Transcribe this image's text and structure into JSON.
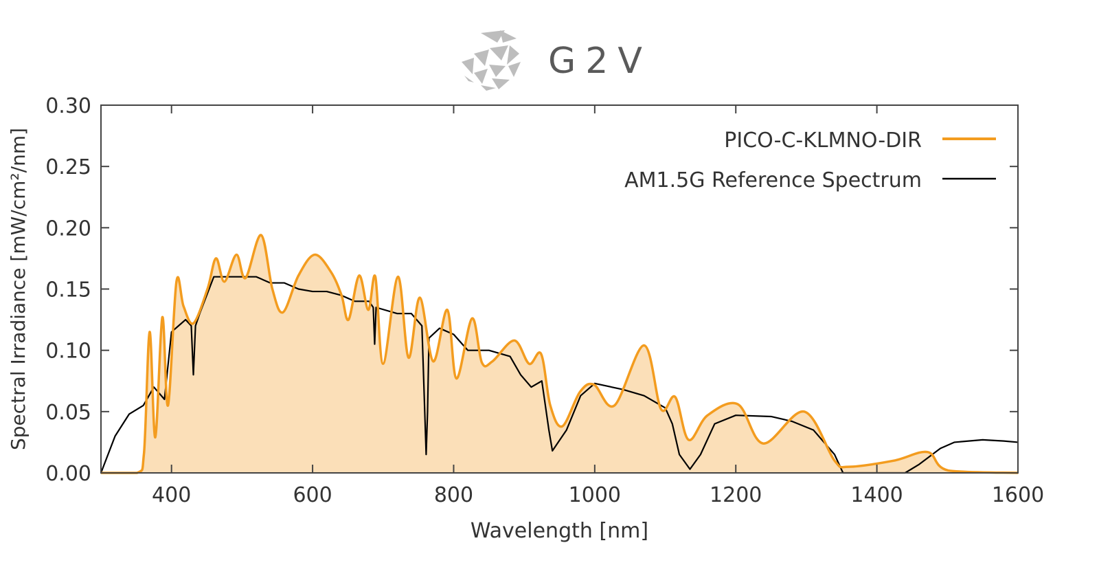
{
  "logo": {
    "text": "G2V"
  },
  "chart_data": {
    "type": "line",
    "title": "",
    "xlabel": "Wavelength [nm]",
    "ylabel": "Spectral Irradiance [mW/cm²/nm]",
    "xlim": [
      300,
      1600
    ],
    "ylim": [
      0,
      0.3
    ],
    "xticks": [
      400,
      600,
      800,
      1000,
      1200,
      1400,
      1600
    ],
    "yticks": [
      "0.00",
      "0.05",
      "0.10",
      "0.15",
      "0.20",
      "0.25",
      "0.30"
    ],
    "grid": false,
    "legend_position": "top-right",
    "series": [
      {
        "name": "PICO-C-KLMNO-DIR",
        "color": "#f39c1f",
        "fill": "#fbdfb8",
        "x": [
          300,
          351,
          361,
          369,
          377,
          387,
          395,
          407,
          417,
          431,
          451,
          463,
          475,
          492,
          505,
          527,
          543,
          558,
          580,
          603,
          626,
          641,
          651,
          666,
          679,
          689,
          700,
          721,
          736,
          752,
          771,
          791,
          804,
          826,
          840,
          855,
          886,
          907,
          924,
          937,
          954,
          979,
          999,
          1028,
          1070,
          1094,
          1114,
          1133,
          1160,
          1203,
          1239,
          1297,
          1340,
          1360,
          1424,
          1472,
          1501,
          1600
        ],
        "y": [
          0,
          0,
          0.016,
          0.115,
          0.029,
          0.127,
          0.055,
          0.156,
          0.136,
          0.122,
          0.15,
          0.175,
          0.156,
          0.178,
          0.159,
          0.194,
          0.15,
          0.131,
          0.161,
          0.178,
          0.164,
          0.145,
          0.125,
          0.161,
          0.133,
          0.16,
          0.089,
          0.16,
          0.094,
          0.143,
          0.091,
          0.133,
          0.077,
          0.126,
          0.09,
          0.091,
          0.108,
          0.089,
          0.097,
          0.055,
          0.038,
          0.066,
          0.072,
          0.055,
          0.104,
          0.052,
          0.062,
          0.027,
          0.047,
          0.056,
          0.024,
          0.05,
          0.01,
          0.005,
          0.01,
          0.017,
          0.002,
          0
        ]
      },
      {
        "name": "AM1.5G Reference Spectrum",
        "color": "#000000",
        "x": [
          300,
          320,
          340,
          360,
          375,
          390,
          400,
          410,
          420,
          428,
          431,
          434,
          440,
          460,
          480,
          500,
          520,
          540,
          560,
          580,
          600,
          620,
          640,
          660,
          680,
          686,
          688,
          690,
          720,
          740,
          755,
          759,
          761,
          763,
          765,
          780,
          800,
          820,
          850,
          880,
          895,
          910,
          925,
          935,
          940,
          960,
          980,
          1000,
          1040,
          1070,
          1100,
          1110,
          1120,
          1135,
          1150,
          1170,
          1200,
          1250,
          1280,
          1310,
          1340,
          1352,
          1440,
          1460,
          1490,
          1510,
          1550,
          1580,
          1600
        ],
        "y": [
          0,
          0.03,
          0.048,
          0.055,
          0.07,
          0.06,
          0.115,
          0.12,
          0.125,
          0.12,
          0.08,
          0.12,
          0.13,
          0.16,
          0.16,
          0.16,
          0.16,
          0.155,
          0.155,
          0.15,
          0.148,
          0.148,
          0.145,
          0.14,
          0.14,
          0.135,
          0.105,
          0.135,
          0.13,
          0.13,
          0.12,
          0.05,
          0.015,
          0.05,
          0.11,
          0.118,
          0.113,
          0.1,
          0.1,
          0.095,
          0.08,
          0.07,
          0.075,
          0.035,
          0.018,
          0.035,
          0.063,
          0.073,
          0.068,
          0.063,
          0.053,
          0.04,
          0.015,
          0.003,
          0.015,
          0.04,
          0.047,
          0.046,
          0.042,
          0.035,
          0.015,
          0,
          0,
          0.007,
          0.02,
          0.025,
          0.027,
          0.026,
          0.025
        ]
      }
    ]
  }
}
